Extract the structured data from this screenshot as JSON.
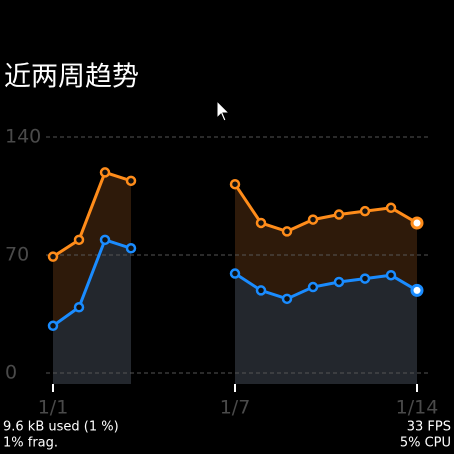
{
  "chart_data": {
    "type": "line",
    "title": "近两周趋势",
    "categories": [
      "1/1",
      null,
      null,
      null,
      null,
      null,
      null,
      "1/7",
      null,
      null,
      null,
      null,
      null,
      null,
      "1/14"
    ],
    "series": [
      {
        "color": "#ff8c1a",
        "fill": "#2e1a0a",
        "values": [
          69,
          79,
          119,
          114,
          null,
          null,
          null,
          112,
          89,
          84,
          91,
          94,
          96,
          98,
          89
        ]
      },
      {
        "color": "#1a8cff",
        "fill": "#23272d",
        "values": [
          28,
          39,
          79,
          74,
          null,
          null,
          null,
          59,
          49,
          44,
          51,
          54,
          56,
          58,
          49
        ]
      }
    ],
    "ylim": [
      0,
      140
    ],
    "yticks": [
      0,
      70,
      140
    ],
    "grid": true
  },
  "overlay": {
    "memory": "9.6 kB used (1 %)",
    "fragmentation": "1% frag.",
    "fps": "33 FPS",
    "cpu": "5% CPU"
  }
}
